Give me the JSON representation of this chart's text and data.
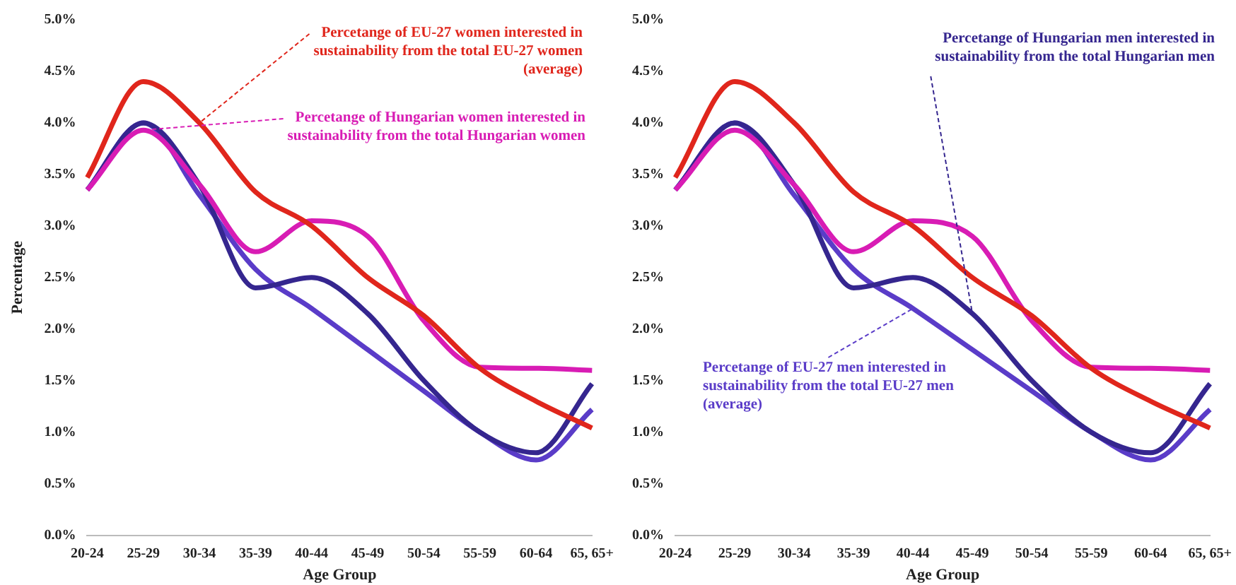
{
  "chart_data": [
    {
      "type": "line",
      "xlabel": "Age Group",
      "ylabel": "Percentage",
      "categories": [
        "20-24",
        "25-29",
        "30-34",
        "35-39",
        "40-44",
        "45-49",
        "50-54",
        "55-59",
        "60-64",
        "65, 65+"
      ],
      "series": [
        {
          "color": "#e0261c",
          "values": [
            3.47,
            4.4,
            4.0,
            3.33,
            3.0,
            2.5,
            2.13,
            1.62,
            1.3,
            1.04
          ]
        },
        {
          "color": "#d81cb4",
          "values": [
            3.35,
            3.93,
            3.4,
            2.75,
            3.05,
            2.9,
            2.08,
            1.63,
            1.62,
            1.6
          ]
        },
        {
          "color": "#35268f",
          "values": [
            3.35,
            4.0,
            3.4,
            2.4,
            2.5,
            2.15,
            1.5,
            1.0,
            0.8,
            1.47
          ]
        },
        {
          "color": "#5a3cc8",
          "values": [
            3.35,
            4.0,
            3.3,
            2.58,
            2.2,
            1.8,
            1.4,
            1.0,
            0.73,
            1.22
          ]
        }
      ],
      "ylim": [
        0,
        5
      ],
      "yticks": [
        {
          "value": 0,
          "label": "0.0%"
        },
        {
          "value": 0.5,
          "label": "0.5%"
        },
        {
          "value": 1,
          "label": "1.0%"
        },
        {
          "value": 1.5,
          "label": "1.5%"
        },
        {
          "value": 2,
          "label": "2.0%"
        },
        {
          "value": 2.5,
          "label": "2.5%"
        },
        {
          "value": 3,
          "label": "3.0%"
        },
        {
          "value": 3.5,
          "label": "3.5%"
        },
        {
          "value": 4,
          "label": "4.0%"
        },
        {
          "value": 4.5,
          "label": "4.5%"
        },
        {
          "value": 5,
          "label": "5.0%"
        }
      ],
      "grid": false,
      "legend": false,
      "marker": "none",
      "line_style": "solid",
      "annotations": [
        {
          "text": "Percetange of EU-27 women interested in sustainability from the total EU-27 women (average)",
          "x": "30-34",
          "y": 4.0
        },
        {
          "text": "Percetange of Hungarian women interested in sustainability from the total Hungarian women",
          "x": "25-29",
          "y": 3.93
        }
      ]
    },
    {
      "type": "line",
      "xlabel": "Age Group",
      "categories": [
        "20-24",
        "25-29",
        "30-34",
        "35-39",
        "40-44",
        "45-49",
        "50-54",
        "55-59",
        "60-64",
        "65, 65+"
      ],
      "series": [
        {
          "color": "#e0261c",
          "values": [
            3.47,
            4.4,
            4.0,
            3.33,
            3.0,
            2.5,
            2.13,
            1.62,
            1.3,
            1.04
          ]
        },
        {
          "color": "#d81cb4",
          "values": [
            3.35,
            3.93,
            3.4,
            2.75,
            3.05,
            2.9,
            2.08,
            1.63,
            1.62,
            1.6
          ]
        },
        {
          "color": "#35268f",
          "values": [
            3.35,
            4.0,
            3.4,
            2.4,
            2.5,
            2.15,
            1.5,
            1.0,
            0.8,
            1.47
          ]
        },
        {
          "color": "#5a3cc8",
          "values": [
            3.35,
            4.0,
            3.3,
            2.58,
            2.2,
            1.8,
            1.4,
            1.0,
            0.73,
            1.22
          ]
        }
      ],
      "ylim": [
        0,
        5
      ],
      "yticks": [
        {
          "value": 0,
          "label": "0.0%"
        },
        {
          "value": 0.5,
          "label": "0.5%"
        },
        {
          "value": 1,
          "label": "1.0%"
        },
        {
          "value": 1.5,
          "label": "1.5%"
        },
        {
          "value": 2,
          "label": "2.0%"
        },
        {
          "value": 2.5,
          "label": "2.5%"
        },
        {
          "value": 3,
          "label": "3.0%"
        },
        {
          "value": 3.5,
          "label": "3.5%"
        },
        {
          "value": 4,
          "label": "4.0%"
        },
        {
          "value": 4.5,
          "label": "4.5%"
        },
        {
          "value": 5,
          "label": "5.0%"
        }
      ],
      "grid": false,
      "legend": false,
      "marker": "none",
      "line_style": "solid",
      "annotations": [
        {
          "text": "Percetange of Hungarian men interested in sustainability from the total Hungarian men",
          "x": "45-49",
          "y": 2.15
        },
        {
          "text": "Percetange of EU-27 men interested in sustainability from the total EU-27 men (average)",
          "x": "40-44",
          "y": 2.2
        }
      ]
    }
  ]
}
